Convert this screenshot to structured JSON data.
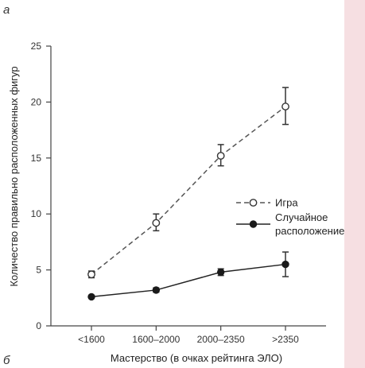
{
  "panel_letters": {
    "top": "а",
    "bottom": "б"
  },
  "colors": {
    "game": "#555555",
    "random": "#222222",
    "page_edge": "#f6dfe2"
  },
  "chart_data": {
    "type": "line",
    "title": "",
    "xlabel": "Мастерство (в очках рейтинга ЭЛО)",
    "ylabel": "Количество правильно расположенных фигур",
    "categories": [
      "<1600",
      "1600–2000",
      "2000–2350",
      ">2350"
    ],
    "ylim": [
      0,
      25
    ],
    "yticks": [
      0,
      5,
      10,
      15,
      20,
      25
    ],
    "grid": false,
    "legend_position": "right-middle",
    "series": [
      {
        "name": "Игра",
        "style": "dashed",
        "marker": "open-circle",
        "values": [
          4.6,
          9.2,
          15.2,
          19.6
        ],
        "err_low": [
          4.3,
          8.5,
          14.3,
          18.0
        ],
        "err_high": [
          4.9,
          10.0,
          16.2,
          21.3
        ]
      },
      {
        "name": "Случайное расположение",
        "legend_lines": [
          "Случайное",
          "расположение"
        ],
        "style": "solid",
        "marker": "filled-circle",
        "values": [
          2.6,
          3.2,
          4.8,
          5.5
        ],
        "err_low": [
          2.5,
          3.0,
          4.5,
          4.4
        ],
        "err_high": [
          2.7,
          3.4,
          5.1,
          6.6
        ]
      }
    ]
  }
}
